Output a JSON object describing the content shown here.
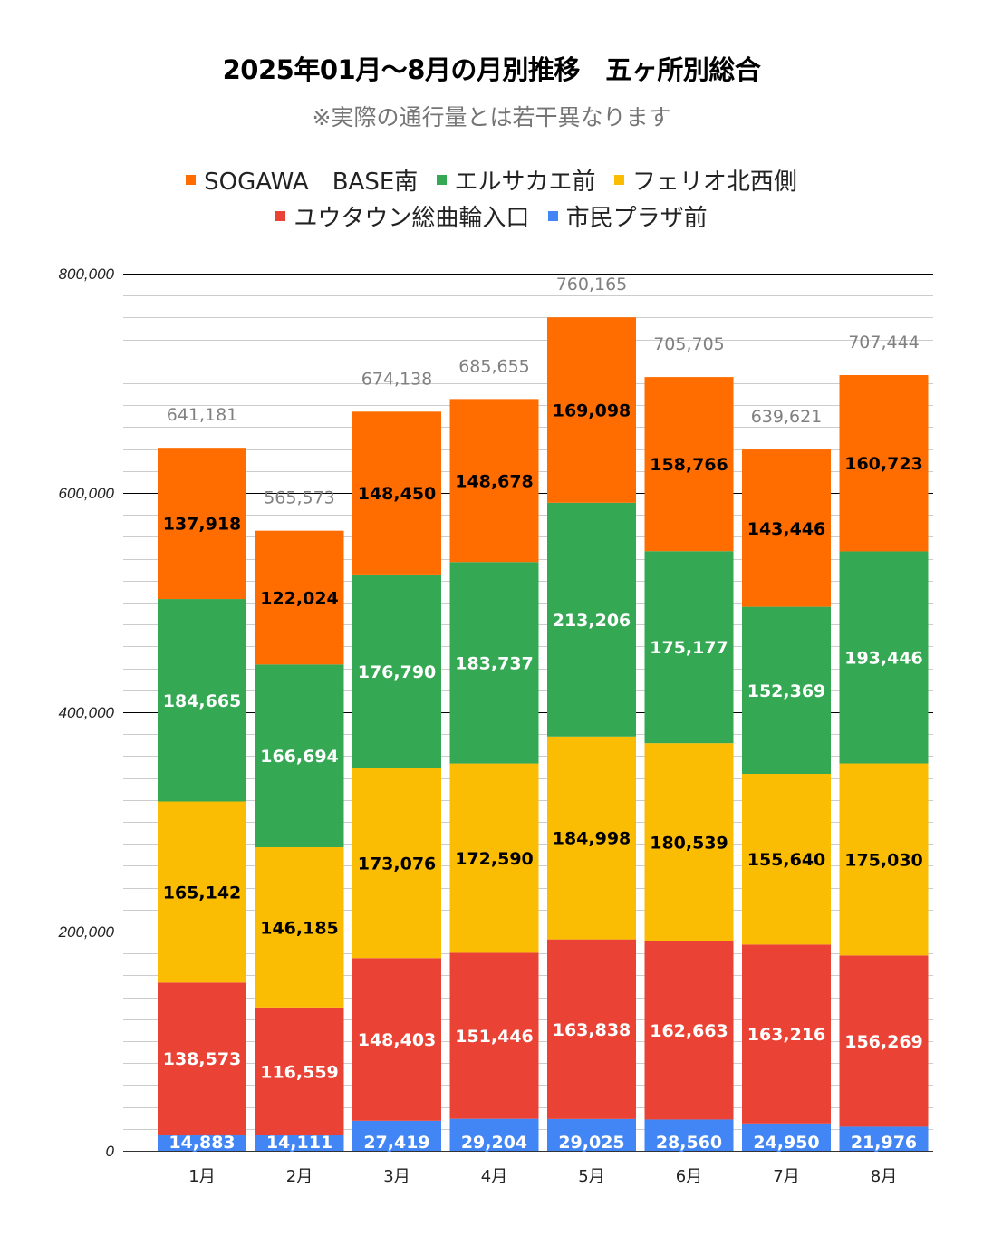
{
  "chart_data": {
    "type": "bar",
    "stacked": true,
    "title": "2025年01月～8月の月別推移　五ヶ所別総合",
    "subtitle": "※実際の通行量とは若干異なります",
    "xlabel": "",
    "ylabel": "",
    "ylim": [
      0,
      800000
    ],
    "yticks": [
      0,
      200000,
      400000,
      600000,
      800000
    ],
    "ytick_labels": [
      "0",
      "200,000",
      "400,000",
      "600,000",
      "800,000"
    ],
    "minor_grid_step": 20000,
    "grid": true,
    "legend_position": "top",
    "categories": [
      "1月",
      "2月",
      "3月",
      "4月",
      "5月",
      "6月",
      "7月",
      "8月"
    ],
    "series": [
      {
        "name": "市民プラザ前",
        "color": "#4285f4",
        "label_fill": "#ffffff",
        "label_stroke": "#4285f4",
        "values": [
          14883,
          14111,
          27419,
          29204,
          29025,
          28560,
          24950,
          21976
        ]
      },
      {
        "name": "ユウタウン総曲輪入口",
        "color": "#ea4335",
        "label_fill": "#ffffff",
        "label_stroke": "#ea4335",
        "values": [
          138573,
          116559,
          148403,
          151446,
          163838,
          162663,
          163216,
          156269
        ]
      },
      {
        "name": "フェリオ北西側",
        "color": "#fbbc04",
        "label_fill": "#000000",
        "label_stroke": "#fbbc04",
        "values": [
          165142,
          146185,
          173076,
          172590,
          184998,
          180539,
          155640,
          175030
        ]
      },
      {
        "name": "エルサカエ前",
        "color": "#34a853",
        "label_fill": "#ffffff",
        "label_stroke": "#34a853",
        "values": [
          184665,
          166694,
          176790,
          183737,
          213206,
          175177,
          152369,
          193446
        ]
      },
      {
        "name": "SOGAWA　BASE南",
        "color": "#ff6d01",
        "label_fill": "#000000",
        "label_stroke": "#ff6d01",
        "values": [
          137918,
          122024,
          148450,
          148678,
          169098,
          158766,
          143446,
          160723
        ]
      }
    ],
    "totals": [
      641181,
      565573,
      674138,
      685655,
      760165,
      705705,
      639621,
      707444
    ],
    "legend": {
      "row1": [
        "SOGAWA　BASE南",
        "エルサカエ前",
        "フェリオ北西側"
      ],
      "row2": [
        "ユウタウン総曲輪入口",
        "市民プラザ前"
      ]
    }
  }
}
